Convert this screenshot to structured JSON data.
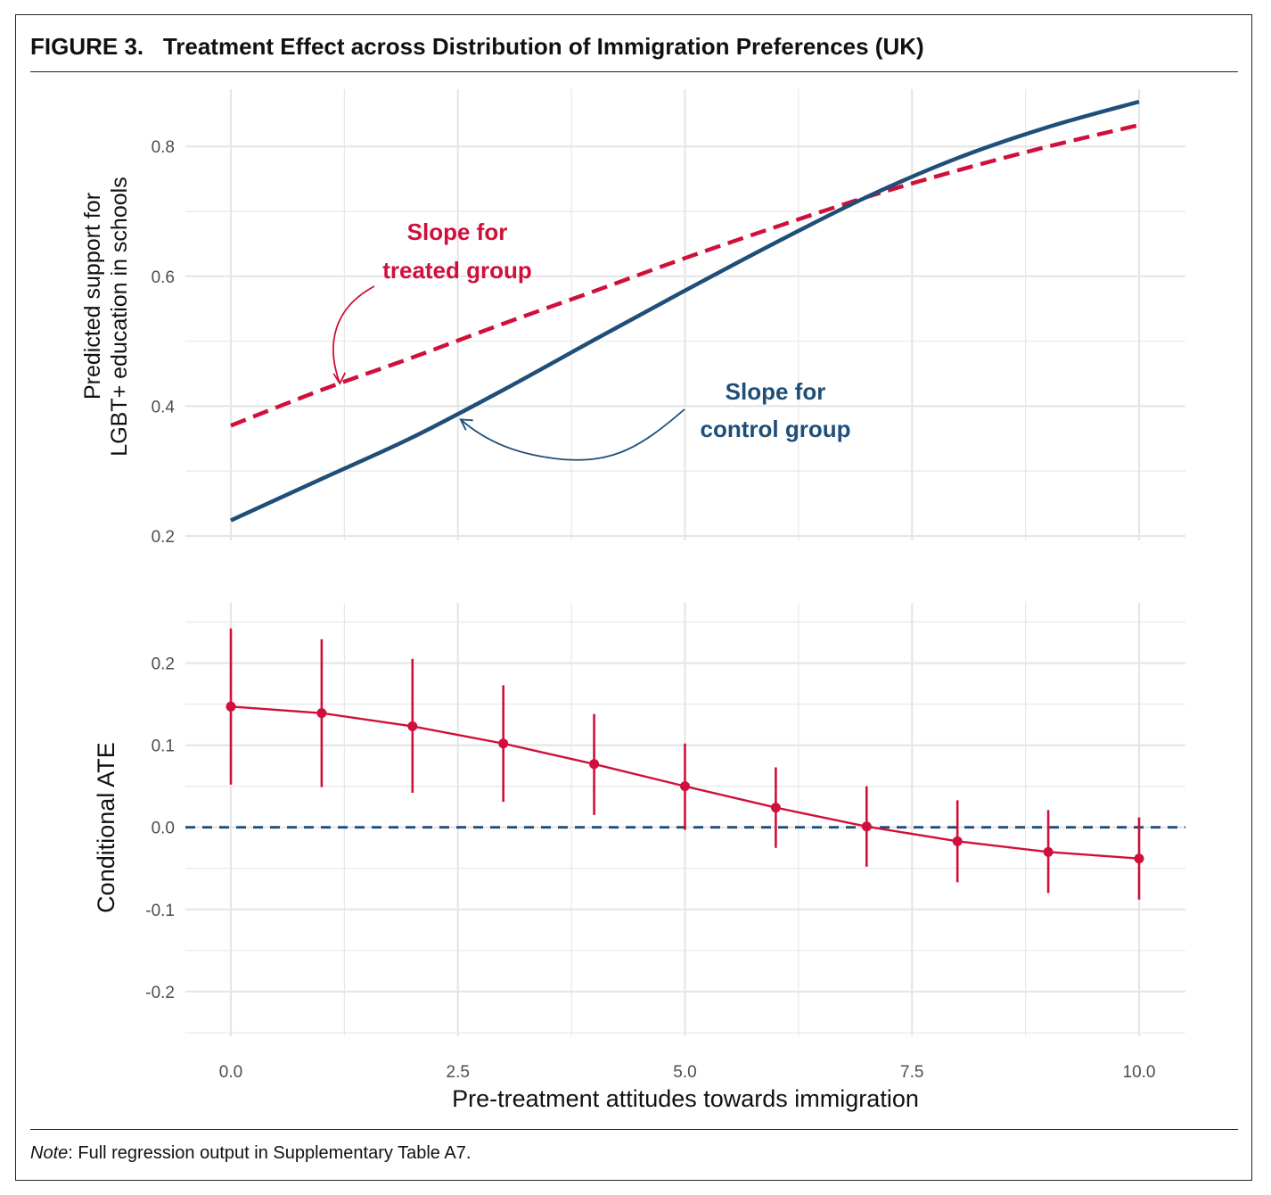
{
  "figure": {
    "label": "FIGURE 3.",
    "title": "Treatment Effect across Distribution of Immigration Preferences (UK)",
    "note_label": "Note",
    "note_text": ": Full regression output in Supplementary Table A7."
  },
  "colors": {
    "treated": "#d0103a",
    "control": "#1f4e79",
    "grid": "#e6e6e6",
    "axis_text": "#4d4d4d"
  },
  "chart_data": [
    {
      "type": "line",
      "panel": "top",
      "ylabel_lines": [
        "Predicted support for",
        "LGBT+ education in schools"
      ],
      "xlim": [
        0,
        10
      ],
      "ylim": [
        0.2,
        0.88
      ],
      "yticks": [
        0.2,
        0.4,
        0.6,
        0.8
      ],
      "ytick_labels": [
        "0.2",
        "0.4",
        "0.6",
        "0.8"
      ],
      "grid": true,
      "series": [
        {
          "style": "dashed",
          "color": "#d0103a",
          "x": [
            0,
            1,
            2,
            3,
            4,
            5,
            6,
            7,
            8,
            9,
            10
          ],
          "y": [
            0.37,
            0.425,
            0.475,
            0.527,
            0.577,
            0.628,
            0.676,
            0.722,
            0.763,
            0.8,
            0.833
          ]
        },
        {
          "style": "solid",
          "color": "#1f4e79",
          "x": [
            0,
            1,
            2,
            3,
            4,
            5,
            6,
            7,
            8,
            9,
            10
          ],
          "y": [
            0.224,
            0.288,
            0.352,
            0.425,
            0.502,
            0.578,
            0.652,
            0.722,
            0.782,
            0.83,
            0.869
          ]
        }
      ],
      "annotations": [
        {
          "lines": [
            "Slope for",
            "treated group"
          ],
          "color": "#d0103a",
          "arrow_to_x": 1.2,
          "arrow_to_y": 0.435
        },
        {
          "lines": [
            "Slope for",
            "control group"
          ],
          "color": "#1f4e79",
          "arrow_to_x": 2.5,
          "arrow_to_y": 0.385
        }
      ]
    },
    {
      "type": "scatter",
      "panel": "bottom",
      "ylabel": "Conditional ATE",
      "xlabel": "Pre-treatment attitudes towards immigration",
      "xlim": [
        0,
        10
      ],
      "ylim": [
        -0.25,
        0.27
      ],
      "xticks": [
        0,
        2.5,
        5,
        7.5,
        10
      ],
      "xtick_labels": [
        "0.0",
        "2.5",
        "5.0",
        "7.5",
        "10.0"
      ],
      "yticks": [
        -0.2,
        -0.1,
        0.0,
        0.1,
        0.2
      ],
      "ytick_labels": [
        "-0.2",
        "-0.1",
        "0.0",
        "0.1",
        "0.2"
      ],
      "grid": true,
      "reference_line": {
        "y": 0,
        "style": "dashed",
        "color": "#1f4e79"
      },
      "series": [
        {
          "color": "#d0103a",
          "x": [
            0,
            1,
            2,
            3,
            4,
            5,
            6,
            7,
            8,
            9,
            10
          ],
          "y": [
            0.147,
            0.139,
            0.123,
            0.102,
            0.077,
            0.05,
            0.024,
            0.001,
            -0.017,
            -0.03,
            -0.038
          ],
          "ci_low": [
            0.052,
            0.049,
            0.042,
            0.031,
            0.015,
            -0.003,
            -0.025,
            -0.048,
            -0.067,
            -0.08,
            -0.088
          ],
          "ci_high": [
            0.242,
            0.229,
            0.205,
            0.173,
            0.138,
            0.102,
            0.073,
            0.05,
            0.033,
            0.021,
            0.012
          ]
        }
      ]
    }
  ]
}
